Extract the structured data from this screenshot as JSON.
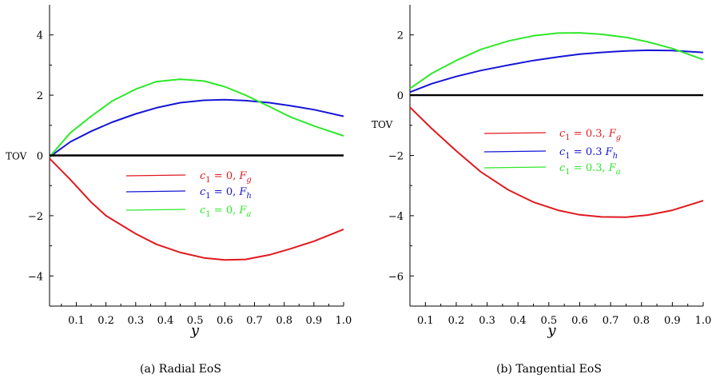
{
  "chart_data": [
    {
      "type": "line",
      "xlabel": "y",
      "ylabel": "TOV",
      "ylabel_at": 0,
      "caption": "(a) Radial EoS",
      "xlim": [
        0.01,
        1.0
      ],
      "ylim": [
        -5,
        5
      ],
      "xticks": [
        "0.1",
        "0.2",
        "0.3",
        "0.4",
        "0.5",
        "0.6",
        "0.7",
        "0.8",
        "0.9",
        "1.0"
      ],
      "yticks": [
        "4",
        "2",
        "0",
        "−2",
        "−4"
      ],
      "ytick_values": [
        4,
        2,
        0,
        -2,
        -4
      ],
      "legend": [
        {
          "pre": "c",
          "sub1": "1",
          "mid": " = 0, ",
          "F": "F",
          "sub2": "g",
          "color": "#e0191e"
        },
        {
          "pre": "c",
          "sub1": "1",
          "mid": " = 0, ",
          "F": "F",
          "sub2": "h",
          "color": "#1515d6"
        },
        {
          "pre": "c",
          "sub1": "1",
          "mid": " = 0, ",
          "F": "F",
          "sub2": "a",
          "color": "#2ee82a"
        }
      ],
      "series": [
        {
          "color": "#e0191e",
          "x": [
            0.01,
            0.08,
            0.15,
            0.2,
            0.3,
            0.37,
            0.45,
            0.53,
            0.6,
            0.67,
            0.75,
            0.82,
            0.9,
            1.0
          ],
          "values": [
            -0.1,
            -0.8,
            -1.55,
            -2.0,
            -2.6,
            -2.95,
            -3.22,
            -3.4,
            -3.47,
            -3.45,
            -3.3,
            -3.1,
            -2.85,
            -2.45
          ]
        },
        {
          "color": "#1515d6",
          "x": [
            0.01,
            0.08,
            0.15,
            0.22,
            0.3,
            0.37,
            0.45,
            0.53,
            0.6,
            0.67,
            0.75,
            0.82,
            0.9,
            1.0
          ],
          "values": [
            -0.05,
            0.45,
            0.8,
            1.1,
            1.38,
            1.58,
            1.75,
            1.83,
            1.85,
            1.82,
            1.75,
            1.65,
            1.52,
            1.3
          ]
        },
        {
          "color": "#2ee82a",
          "x": [
            0.01,
            0.08,
            0.15,
            0.22,
            0.3,
            0.37,
            0.45,
            0.53,
            0.6,
            0.67,
            0.75,
            0.82,
            0.9,
            1.0
          ],
          "values": [
            -0.05,
            0.75,
            1.3,
            1.8,
            2.2,
            2.45,
            2.53,
            2.47,
            2.28,
            2.0,
            1.62,
            1.28,
            0.98,
            0.65
          ]
        },
        {
          "color": "#000000",
          "x": [
            0.01,
            1.0
          ],
          "values": [
            0,
            0
          ],
          "width": 2.4
        }
      ]
    },
    {
      "type": "line",
      "xlabel": "y",
      "ylabel": "TOV",
      "ylabel_at": -1,
      "caption": "(b) Tangential EoS",
      "xlim": [
        0.05,
        1.0
      ],
      "ylim": [
        -7,
        3
      ],
      "xticks": [
        "0.1",
        "0.2",
        "0.3",
        "0.4",
        "0.5",
        "0.6",
        "0.7",
        "0.8",
        "0.9",
        "1.0"
      ],
      "yticks": [
        "2",
        "0",
        "−2",
        "−4",
        "−6"
      ],
      "ytick_values": [
        2,
        0,
        -2,
        -4,
        -6
      ],
      "legend": [
        {
          "pre": "c",
          "sub1": "1",
          "mid": " = 0.3, ",
          "F": "F",
          "sub2": "g",
          "color": "#e0191e"
        },
        {
          "pre": "c",
          "sub1": "1",
          "mid": " = 0.3   ",
          "F": "F",
          "sub2": "h",
          "color": "#1515d6"
        },
        {
          "pre": "c",
          "sub1": "1",
          "mid": " = 0.3, ",
          "F": "F",
          "sub2": "a",
          "color": "#2ee82a"
        }
      ],
      "series": [
        {
          "color": "#e0191e",
          "x": [
            0.05,
            0.12,
            0.2,
            0.28,
            0.37,
            0.45,
            0.53,
            0.6,
            0.67,
            0.75,
            0.82,
            0.9,
            1.0
          ],
          "values": [
            -0.4,
            -1.1,
            -1.85,
            -2.55,
            -3.15,
            -3.55,
            -3.82,
            -3.97,
            -4.04,
            -4.05,
            -3.98,
            -3.82,
            -3.5
          ]
        },
        {
          "color": "#1515d6",
          "x": [
            0.05,
            0.12,
            0.2,
            0.28,
            0.37,
            0.45,
            0.53,
            0.6,
            0.67,
            0.75,
            0.82,
            0.9,
            1.0
          ],
          "values": [
            0.1,
            0.38,
            0.62,
            0.82,
            1.0,
            1.15,
            1.27,
            1.36,
            1.42,
            1.47,
            1.49,
            1.48,
            1.42
          ]
        },
        {
          "color": "#2ee82a",
          "x": [
            0.05,
            0.12,
            0.2,
            0.28,
            0.37,
            0.45,
            0.53,
            0.6,
            0.67,
            0.75,
            0.82,
            0.9,
            1.0
          ],
          "values": [
            0.22,
            0.72,
            1.15,
            1.52,
            1.8,
            1.97,
            2.06,
            2.07,
            2.02,
            1.92,
            1.77,
            1.55,
            1.18
          ]
        },
        {
          "color": "#000000",
          "x": [
            0.05,
            1.0
          ],
          "values": [
            0,
            0
          ],
          "width": 2.4
        }
      ]
    }
  ]
}
